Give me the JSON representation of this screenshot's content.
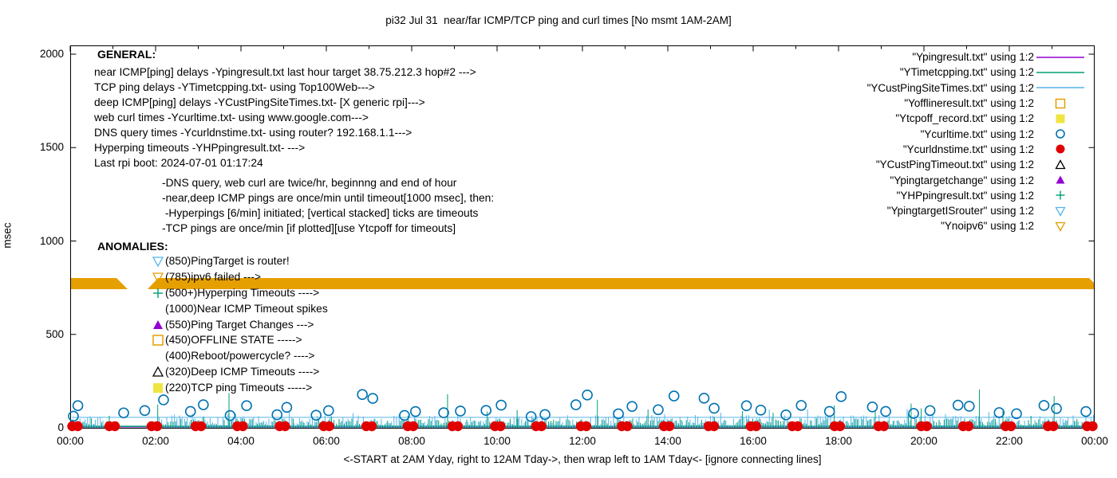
{
  "title": "pi32 Jul 31  near/far ICMP/TCP ping and curl times [No msmt 1AM-2AM]",
  "axes": {
    "ylabel": "msec",
    "xlabel": "<-START at 2AM Yday, right to 12AM Tday->, then wrap left to 1AM Tday<- [ignore connecting lines]",
    "x_ticks": [
      "00:00",
      "02:00",
      "04:00",
      "06:00",
      "08:00",
      "10:00",
      "12:00",
      "14:00",
      "16:00",
      "18:00",
      "20:00",
      "22:00",
      "00:00"
    ],
    "y_ticks": [
      0,
      500,
      1000,
      1500,
      2000
    ]
  },
  "general": {
    "heading": "GENERAL:",
    "lines": [
      "near ICMP[ping] delays -Ypingresult.txt last hour target 38.75.212.3 hop#2 --->",
      "TCP ping delays -YTimetcpping.txt- using Top100Web--->",
      "deep ICMP[ping] delays -YCustPingSiteTimes.txt- [X generic rpi]--->",
      "web curl times -Ycurltime.txt- using www.google.com--->",
      "DNS query times -Ycurldnstime.txt- using router? 192.168.1.1--->",
      "Hyperping timeouts -YHPpingresult.txt- --->",
      "Last rpi boot: 2024-07-01 01:17:24"
    ],
    "indent_lines": [
      "-DNS query, web curl are twice/hr, beginnng and end of hour",
      "-near,deep ICMP pings are once/min until timeout[1000 msec], then:",
      " -Hyperpings [6/min] initiated; [vertical stacked] ticks are timeouts",
      "-TCP pings are once/min [if plotted][use Ytcpoff for timeouts]"
    ]
  },
  "anomalies": {
    "heading": "ANOMALIES:",
    "items": [
      {
        "marker": "triangle-down-open",
        "color": "#56B4E9",
        "text": "(850)PingTarget is router!"
      },
      {
        "marker": "triangle-down-open",
        "color": "#E69F00",
        "text": "(785)ipv6 failed --->"
      },
      {
        "marker": "plus",
        "color": "#009E73",
        "text": "(500+)Hyperping Timeouts ---->"
      },
      {
        "marker": "none",
        "color": "#000000",
        "text": "(1000)Near ICMP Timeout spikes"
      },
      {
        "marker": "triangle-up-filled",
        "color": "#9400D3",
        "text": "(550)Ping Target Changes --->"
      },
      {
        "marker": "square-open",
        "color": "#E69F00",
        "text": "(450)OFFLINE STATE ----->"
      },
      {
        "marker": "none",
        "color": "#000000",
        "text": "(400)Reboot/powercycle? ---->"
      },
      {
        "marker": "triangle-up-open",
        "color": "#000000",
        "text": "(320)Deep ICMP Timeouts ---->"
      },
      {
        "marker": "square-filled",
        "color": "#F0E442",
        "text": "(220)TCP ping Timeouts ----->"
      }
    ]
  },
  "legend": {
    "items": [
      {
        "label": "\"Ypingresult.txt\" using 1:2",
        "marker": "line",
        "color": "#9400D3"
      },
      {
        "label": "\"YTimetcpping.txt\" using 1:2",
        "marker": "line",
        "color": "#009E73"
      },
      {
        "label": "\"YCustPingSiteTimes.txt\" using 1:2",
        "marker": "line",
        "color": "#56B4E9"
      },
      {
        "label": "\"Yofflineresult.txt\" using 1:2",
        "marker": "square-open",
        "color": "#E69F00"
      },
      {
        "label": "\"Ytcpoff_record.txt\" using 1:2",
        "marker": "square-filled",
        "color": "#F0E442"
      },
      {
        "label": "\"Ycurltime.txt\" using 1:2",
        "marker": "circle-open",
        "color": "#0072B2"
      },
      {
        "label": "\"Ycurldnstime.txt\" using 1:2",
        "marker": "circle-filled",
        "color": "#E00000"
      },
      {
        "label": "\"YCustPingTimeout.txt\" using 1:2",
        "marker": "triangle-up-open",
        "color": "#000000"
      },
      {
        "label": "\"Ypingtargetchange\" using 1:2",
        "marker": "triangle-up-filled",
        "color": "#9400D3"
      },
      {
        "label": "\"YHPpingresult.txt\" using 1:2",
        "marker": "plus",
        "color": "#009E73"
      },
      {
        "label": "\"YpingtargetISrouter\" using 1:2",
        "marker": "triangle-down-open",
        "color": "#56B4E9"
      },
      {
        "label": "\"Ynoipv6\" using 1:2",
        "marker": "triangle-down-open",
        "color": "#E69F00"
      }
    ]
  },
  "chart_data": {
    "type": "line",
    "title": "pi32 Jul 31  near/far ICMP/TCP ping and curl times [No msmt 1AM-2AM]",
    "xlabel": "<-START at 2AM Yday, right to 12AM Tday->, then wrap left to 1AM Tday<- [ignore connecting lines]",
    "ylabel": "msec",
    "ylim": [
      0,
      2000
    ],
    "x_hours": 24,
    "x_tick_labels": [
      "00:00",
      "02:00",
      "04:00",
      "06:00",
      "08:00",
      "10:00",
      "12:00",
      "14:00",
      "16:00",
      "18:00",
      "20:00",
      "22:00",
      "00:00"
    ],
    "y_tick_values": [
      0,
      500,
      1000,
      1500,
      2000
    ],
    "grid": false,
    "legend_position": "top-right-inside",
    "series": [
      {
        "name": "\"Ypingresult.txt\" using 1:2",
        "style": "line",
        "color": "#9400D3",
        "summary": "near ICMP ping delays; flat baseline ~4 msec hidden under noise"
      },
      {
        "name": "\"YTimetcpping.txt\" using 1:2",
        "style": "line",
        "color": "#009E73",
        "summary": "TCP ping delays; flat ~8 msec line plus dense noise 0-100 msec, spikes to ~200"
      },
      {
        "name": "\"YCustPingSiteTimes.txt\" using 1:2",
        "style": "line",
        "color": "#56B4E9",
        "summary": "deep ICMP ping delays; dense noise 0-100 msec; flat connecting line ~56 msec visible 00:00-02:00"
      },
      {
        "name": "\"Yofflineresult.txt\" using 1:2",
        "style": "points",
        "marker": "square-open",
        "color": "#E69F00",
        "summary": "no points plotted this day"
      },
      {
        "name": "\"Ytcpoff_record.txt\" using 1:2",
        "style": "points",
        "marker": "square-filled",
        "color": "#F0E442",
        "summary": "no points plotted this day"
      },
      {
        "name": "\"Ycurltime.txt\" using 1:2",
        "style": "points",
        "marker": "circle-open",
        "color": "#0072B2",
        "summary": "web curl times twice/hr; open-circle pairs ~55-130 msec near every hour, occasional ~150-185 msec"
      },
      {
        "name": "\"Ycurldnstime.txt\" using 1:2",
        "style": "points",
        "marker": "circle-filled",
        "color": "#E00000",
        "summary": "DNS query times; filled red clusters ~0-15 msec at every hour 00:00-24:00"
      },
      {
        "name": "\"YCustPingTimeout.txt\" using 1:2",
        "style": "points",
        "marker": "triangle-up-open",
        "color": "#000000",
        "summary": "no points plotted this day"
      },
      {
        "name": "\"Ypingtargetchange\" using 1:2",
        "style": "points",
        "marker": "triangle-up-filled",
        "color": "#9400D3",
        "summary": "no points plotted this day"
      },
      {
        "name": "\"YHPpingresult.txt\" using 1:2",
        "style": "points",
        "marker": "plus",
        "color": "#009E73",
        "summary": "no points plotted this day"
      },
      {
        "name": "\"YpingtargetISrouter\" using 1:2",
        "style": "points",
        "marker": "triangle-down-open",
        "color": "#56B4E9",
        "summary": "no points plotted this day"
      },
      {
        "name": "\"Ynoipv6\" using 1:2",
        "style": "points",
        "marker": "triangle-down-open",
        "color": "#E69F00",
        "summary": "solid orange band of stacked markers at ~785 msec spanning full day"
      }
    ],
    "ipv6_band": {
      "msec": 785,
      "segments_hours": [
        [
          0.0,
          1.3
        ],
        [
          1.8,
          24.0
        ]
      ],
      "note": "gap corresponds to No msmt 1AM-2AM"
    },
    "measurement_gap": {
      "hours": [
        1,
        2
      ],
      "note": "No msmt 1AM-2AM"
    },
    "hourly_dns_markers": {
      "msec": 8,
      "at": "every hour 00:00-24:00"
    },
    "flat_lines": [
      {
        "series": "YCustPingSiteTimes",
        "msec": 56
      },
      {
        "series": "YTimetcpping",
        "msec": 8
      },
      {
        "series": "Ypingresult",
        "msec": 4
      }
    ],
    "notable_spikes": [
      {
        "hour": 2.05,
        "msec": 125
      },
      {
        "hour": 3.72,
        "msec": 185
      },
      {
        "hour": 8.84,
        "msec": 180
      },
      {
        "hour": 10.47,
        "msec": 95
      },
      {
        "hour": 12.35,
        "msec": 150
      },
      {
        "hour": 17.9,
        "msec": 120
      },
      {
        "hour": 19.7,
        "msec": 130
      },
      {
        "hour": 21.3,
        "msec": 205
      },
      {
        "hour": 23.05,
        "msec": 170
      }
    ],
    "render": {
      "seed": 11,
      "noise_base_msec": [
        0,
        72
      ],
      "circle_msec": [
        55,
        130
      ]
    }
  }
}
